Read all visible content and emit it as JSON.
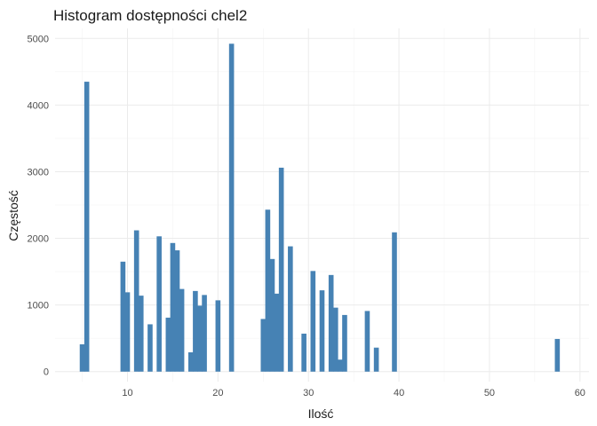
{
  "chart_data": {
    "type": "bar",
    "title": "Histogram dostępności chel2",
    "xlabel": "Ilość",
    "ylabel": "Częstość",
    "xlim": [
      2,
      61
    ],
    "ylim": [
      -150,
      5150
    ],
    "xticks": [
      10,
      20,
      30,
      40,
      50,
      60
    ],
    "yticks": [
      0,
      1000,
      2000,
      3000,
      4000,
      5000
    ],
    "bar_width": 0.55,
    "color": "#4682b4",
    "grid": true,
    "bars": [
      {
        "x": 5.0,
        "y": 410
      },
      {
        "x": 5.5,
        "y": 4350
      },
      {
        "x": 9.5,
        "y": 1650
      },
      {
        "x": 10.0,
        "y": 1190
      },
      {
        "x": 11.0,
        "y": 2120
      },
      {
        "x": 11.5,
        "y": 1140
      },
      {
        "x": 12.5,
        "y": 710
      },
      {
        "x": 13.5,
        "y": 2030
      },
      {
        "x": 14.5,
        "y": 810
      },
      {
        "x": 15.0,
        "y": 1930
      },
      {
        "x": 15.5,
        "y": 1820
      },
      {
        "x": 16.0,
        "y": 1240
      },
      {
        "x": 17.0,
        "y": 290
      },
      {
        "x": 17.5,
        "y": 1210
      },
      {
        "x": 18.0,
        "y": 990
      },
      {
        "x": 18.5,
        "y": 1150
      },
      {
        "x": 20.0,
        "y": 1070
      },
      {
        "x": 21.5,
        "y": 4920
      },
      {
        "x": 25.0,
        "y": 790
      },
      {
        "x": 25.5,
        "y": 2430
      },
      {
        "x": 26.0,
        "y": 1690
      },
      {
        "x": 26.5,
        "y": 1170
      },
      {
        "x": 27.0,
        "y": 3060
      },
      {
        "x": 28.0,
        "y": 1880
      },
      {
        "x": 29.5,
        "y": 570
      },
      {
        "x": 30.5,
        "y": 1510
      },
      {
        "x": 31.5,
        "y": 1220
      },
      {
        "x": 32.5,
        "y": 1450
      },
      {
        "x": 33.0,
        "y": 960
      },
      {
        "x": 33.5,
        "y": 180
      },
      {
        "x": 34.0,
        "y": 850
      },
      {
        "x": 36.5,
        "y": 910
      },
      {
        "x": 37.5,
        "y": 360
      },
      {
        "x": 39.5,
        "y": 2090
      },
      {
        "x": 57.5,
        "y": 490
      }
    ]
  }
}
